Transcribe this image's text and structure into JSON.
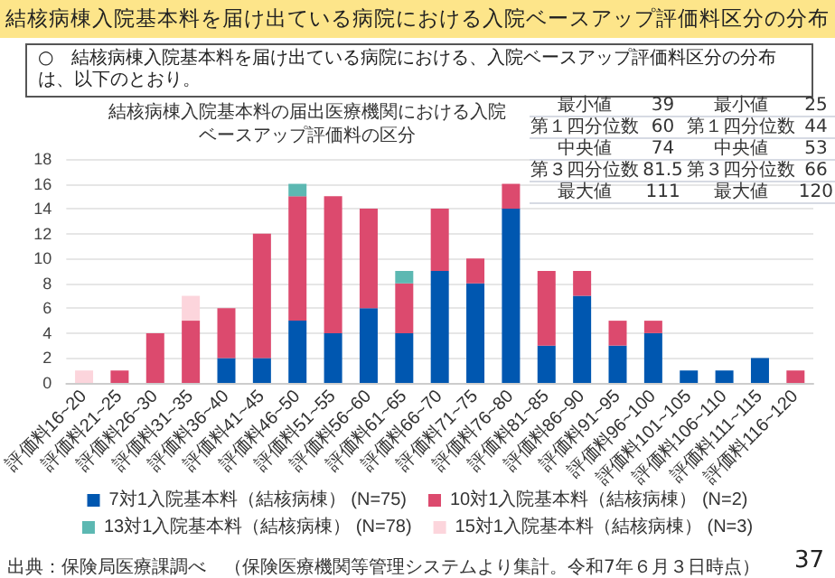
{
  "chart_data": {
    "type": "bar",
    "stacked": true,
    "title": "結核病棟入院基本料を届け出ている病院における入院ベースアップ評価料区分の分布",
    "subtitle": "○　結核病棟入院基本料を届け出ている病院における、入院ベースアップ評価料区分の分布は、以下のとおり。",
    "categories": [
      "評価料16~20",
      "評価料21~25",
      "評価料26~30",
      "評価料31~35",
      "評価料36~40",
      "評価料41~45",
      "評価料46~50",
      "評価料51~55",
      "評価料56~60",
      "評価料61~65",
      "評価料66~70",
      "評価料71~75",
      "評価料76~80",
      "評価料81~85",
      "評価料86~90",
      "評価料91~95",
      "評価料96~100",
      "評価料101~105",
      "評価料106~110",
      "評価料111~115",
      "評価料116~120"
    ],
    "series": [
      {
        "name": "7対1入院基本料（結核病棟） (N=75)",
        "color": "#0057b0",
        "values": [
          0,
          0,
          0,
          0,
          2,
          2,
          5,
          4,
          6,
          4,
          9,
          8,
          14,
          3,
          7,
          3,
          4,
          1,
          1,
          2,
          0
        ]
      },
      {
        "name": "10対1入院基本料（結核病棟） (N=2)",
        "color": "#dc4a6e",
        "values": [
          0,
          1,
          4,
          5,
          4,
          10,
          10,
          11,
          8,
          4,
          5,
          2,
          2,
          6,
          2,
          2,
          1,
          0,
          0,
          0,
          1
        ]
      },
      {
        "name": "13対1入院基本料（結核病棟） (N=78)",
        "color": "#5cb8b2",
        "values": [
          0,
          0,
          0,
          0,
          0,
          0,
          1,
          0,
          0,
          1,
          0,
          0,
          0,
          0,
          0,
          0,
          0,
          0,
          0,
          0,
          0
        ]
      },
      {
        "name": "15対1入院基本料（結核病棟） (N=3)",
        "color": "#fcd5dc",
        "values": [
          1,
          0,
          0,
          2,
          0,
          0,
          0,
          0,
          0,
          0,
          0,
          0,
          0,
          0,
          0,
          0,
          0,
          0,
          0,
          0,
          0
        ]
      }
    ],
    "ylim": [
      0,
      18
    ],
    "yticks": [
      0,
      2,
      4,
      6,
      8,
      10,
      12,
      14,
      16,
      18
    ],
    "grid": "y",
    "legend": "bottom",
    "annotations": [
      "結核病棟入院基本料の届出医療機関における入院ベースアップ評価料の区分",
      "最小値",
      "39",
      "最小値",
      "25",
      "第１四分位数",
      "60",
      "第１四分位数",
      "44",
      "中央値",
      "74",
      "中央値",
      "53",
      "第３四分位数",
      "81.5",
      "第３四分位数",
      "66",
      "最大値",
      "111",
      "最大値",
      "120",
      "出典：保険局医療課調べ　（保険医療機関等管理システムより集計。令和7年６月３日時点）",
      "37"
    ]
  }
}
